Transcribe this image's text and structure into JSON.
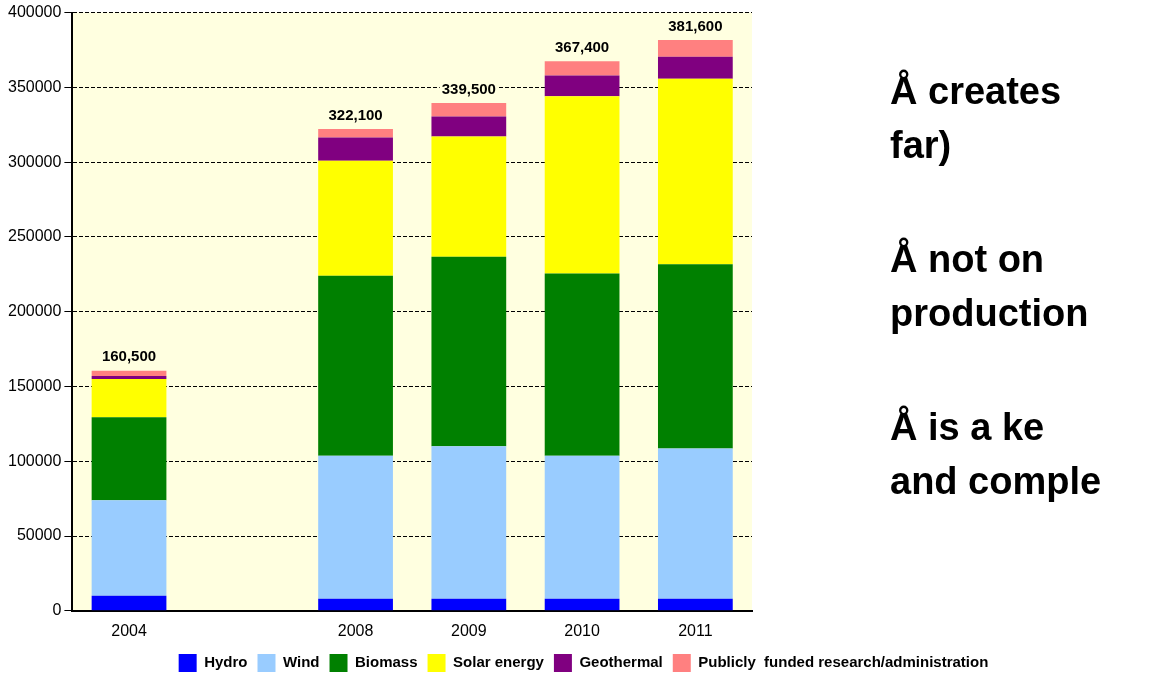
{
  "chart_data": {
    "type": "bar",
    "stacked": true,
    "categories": [
      "2004",
      null,
      "2008",
      "2009",
      "2010",
      "2011"
    ],
    "series": [
      {
        "name": "Hydro",
        "color": "#0000ff",
        "values": [
          10000,
          null,
          8000,
          8000,
          8000,
          8000
        ]
      },
      {
        "name": "Wind",
        "color": "#99ccff",
        "values": [
          64000,
          null,
          95600,
          102000,
          95600,
          100500
        ]
      },
      {
        "name": "Biomass",
        "color": "#008000",
        "values": [
          55500,
          null,
          120400,
          126700,
          121900,
          123300
        ]
      },
      {
        "name": "Solar energy",
        "color": "#ffff00",
        "values": [
          25500,
          null,
          77000,
          80500,
          118500,
          124000
        ]
      },
      {
        "name": "Geothermal",
        "color": "#800080",
        "values": [
          2000,
          null,
          15500,
          13300,
          13900,
          14700
        ]
      },
      {
        "name": "Publicly  funded research/administration",
        "color": "#ff8080",
        "values": [
          3500,
          null,
          5600,
          9000,
          9500,
          11100
        ]
      }
    ],
    "totals": [
      "160,500",
      null,
      "322,100",
      "339,500",
      "367,400",
      "381,600"
    ],
    "ylim": [
      0,
      400000
    ],
    "yticks": [
      0,
      50000,
      100000,
      150000,
      200000,
      250000,
      300000,
      350000,
      400000
    ],
    "grid": "y",
    "legend": "bottom",
    "annotations": [
      "Å  creates",
      "far)",
      "Å  not on",
      "production",
      "Å  is a ke",
      "and comple"
    ]
  }
}
